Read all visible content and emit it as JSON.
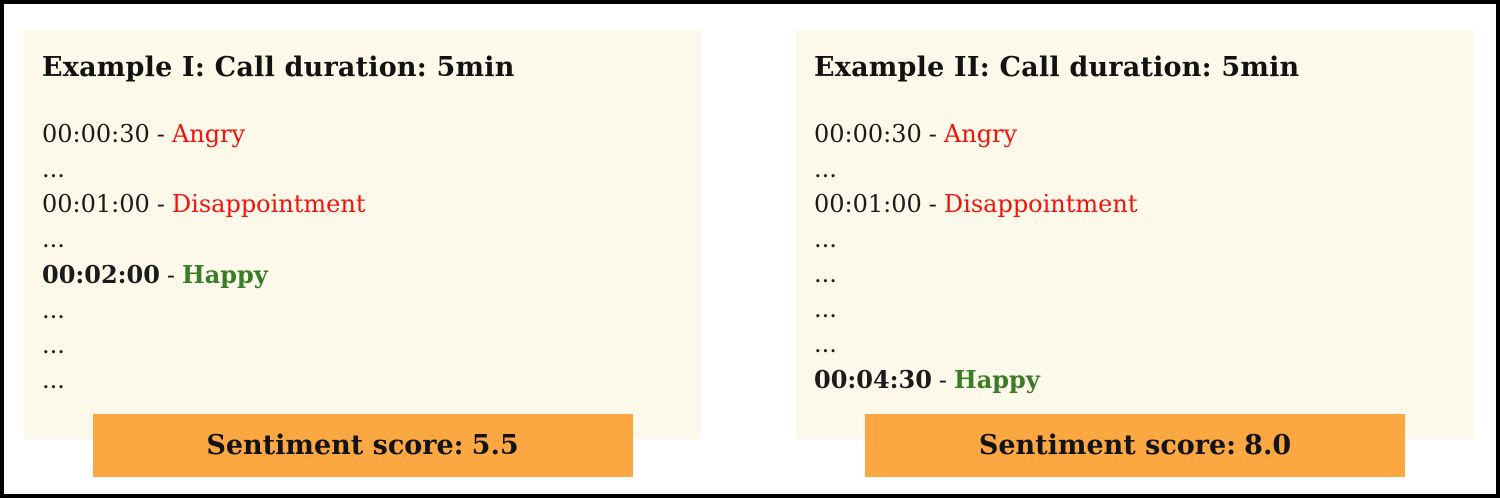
{
  "colors": {
    "canvas_background": "#ffffff",
    "frame_border": "#000000",
    "panel_background": "#FCF8EA",
    "banner_background": "#FBA842",
    "body_text": "#1b1b1b",
    "negative_emotion": "#F2130C",
    "positive_emotion": "#3A7D26"
  },
  "panels": [
    {
      "title": "Example I: Call duration: 5min",
      "lines": [
        {
          "type": "entry",
          "time": "00:00:30",
          "separator": "-",
          "emotion": "Angry",
          "tone": "negative",
          "emphasis": false
        },
        {
          "type": "ellipsis",
          "text": "..."
        },
        {
          "type": "entry",
          "time": "00:01:00",
          "separator": "-",
          "emotion": "Disappointment",
          "tone": "negative",
          "emphasis": false
        },
        {
          "type": "ellipsis",
          "text": "..."
        },
        {
          "type": "entry",
          "time": "00:02:00",
          "separator": "-",
          "emotion": "Happy",
          "tone": "positive",
          "emphasis": true
        },
        {
          "type": "ellipsis",
          "text": "..."
        },
        {
          "type": "ellipsis",
          "text": "..."
        },
        {
          "type": "ellipsis",
          "text": "..."
        }
      ],
      "score_prefix": "Sentiment score:",
      "score_value": "5.5"
    },
    {
      "title": "Example II: Call duration: 5min",
      "lines": [
        {
          "type": "entry",
          "time": "00:00:30",
          "separator": "-",
          "emotion": "Angry",
          "tone": "negative",
          "emphasis": false
        },
        {
          "type": "ellipsis",
          "text": "..."
        },
        {
          "type": "entry",
          "time": "00:01:00",
          "separator": "-",
          "emotion": "Disappointment",
          "tone": "negative",
          "emphasis": false
        },
        {
          "type": "ellipsis",
          "text": "..."
        },
        {
          "type": "ellipsis",
          "text": "..."
        },
        {
          "type": "ellipsis",
          "text": "..."
        },
        {
          "type": "ellipsis",
          "text": "..."
        },
        {
          "type": "entry",
          "time": "00:04:30",
          "separator": "-",
          "emotion": "Happy",
          "tone": "positive",
          "emphasis": true
        }
      ],
      "score_prefix": "Sentiment score:",
      "score_value": "8.0"
    }
  ]
}
